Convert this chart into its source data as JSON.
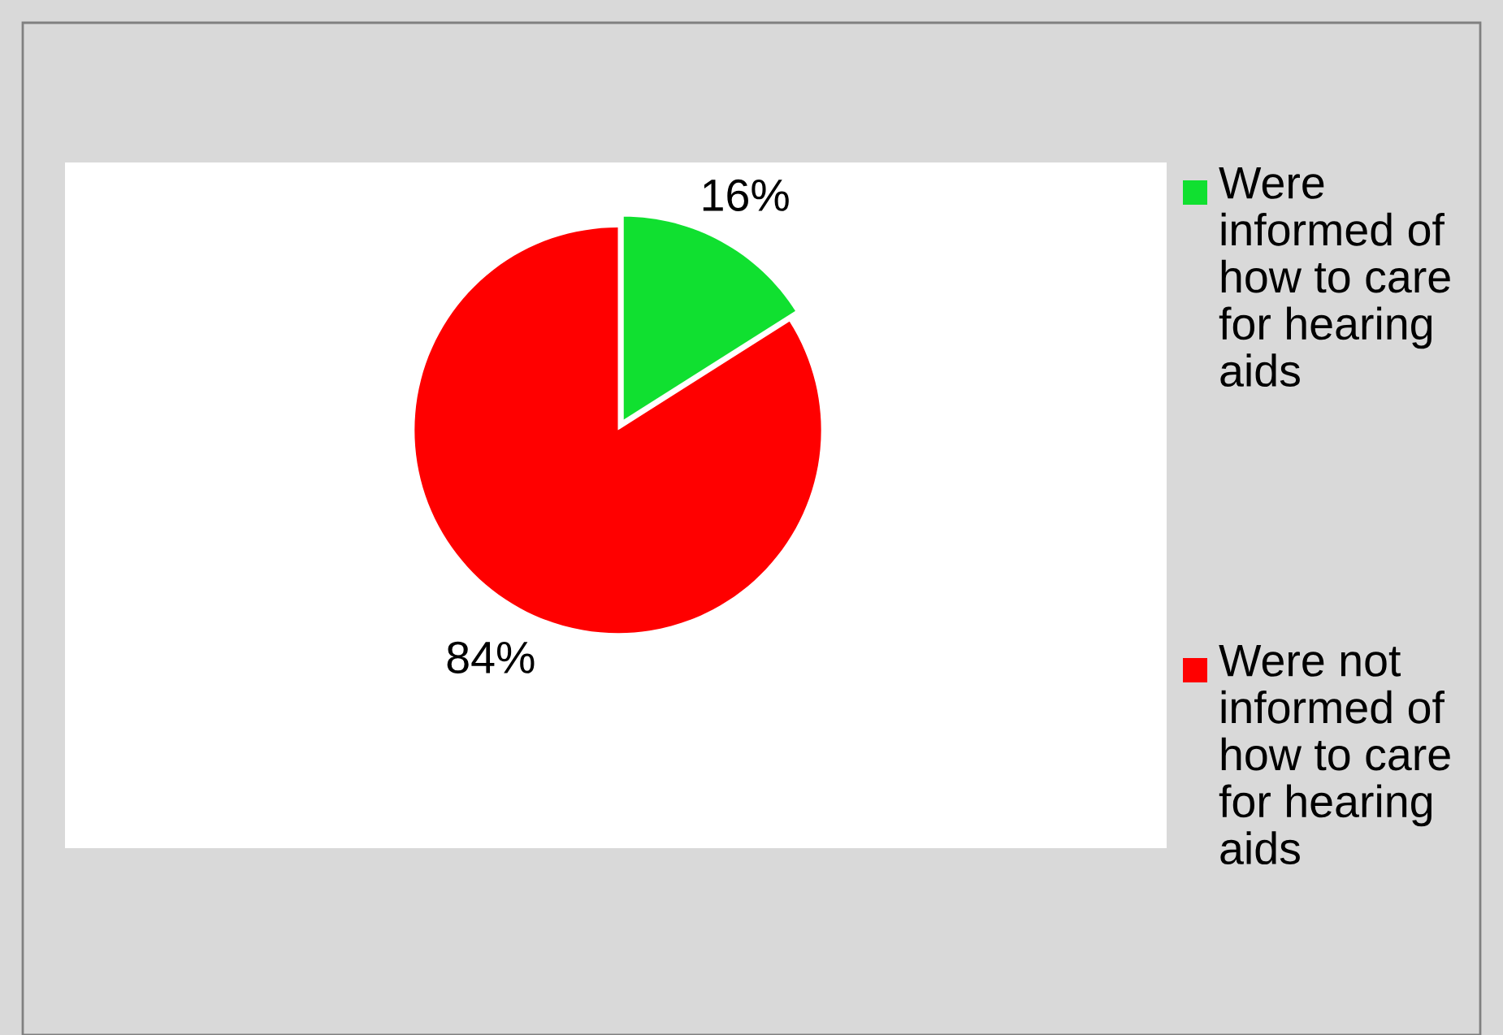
{
  "chart_data": {
    "type": "pie",
    "categories": [
      "Were informed of how to care for hearing aids",
      "Were not informed of how to care for hearing aids"
    ],
    "values": [
      16,
      84
    ],
    "colors": [
      "#10e030",
      "#ff0000"
    ],
    "value_labels": [
      "16%",
      "84%"
    ],
    "legend": "right"
  }
}
